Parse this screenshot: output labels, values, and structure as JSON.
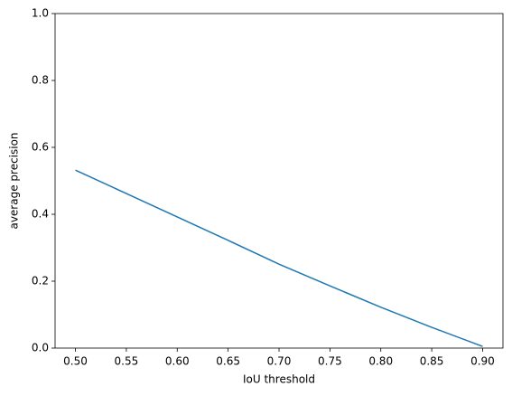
{
  "chart_data": {
    "type": "line",
    "x_label": "IoU threshold",
    "y_label": "average precision",
    "x": [
      0.5,
      0.55,
      0.6,
      0.65,
      0.7,
      0.75,
      0.8,
      0.85,
      0.9
    ],
    "series": [
      {
        "color": "#1f77b4",
        "values": [
          0.532,
          0.462,
          0.392,
          0.322,
          0.251,
          0.186,
          0.122,
          0.062,
          0.005
        ]
      }
    ],
    "xlim": [
      0.48,
      0.92
    ],
    "xticks": [
      {
        "value": 0.5,
        "label": "0.50"
      },
      {
        "value": 0.55,
        "label": "0.55"
      },
      {
        "value": 0.6,
        "label": "0.60"
      },
      {
        "value": 0.65,
        "label": "0.65"
      },
      {
        "value": 0.7,
        "label": "0.70"
      },
      {
        "value": 0.75,
        "label": "0.75"
      },
      {
        "value": 0.8,
        "label": "0.80"
      },
      {
        "value": 0.85,
        "label": "0.85"
      },
      {
        "value": 0.9,
        "label": "0.90"
      }
    ],
    "ylim": [
      0,
      1
    ],
    "yticks": [
      {
        "value": 0,
        "label": "0.0"
      },
      0.2,
      0.4,
      0.6,
      0.8,
      {
        "value": 1,
        "label": "1.0"
      }
    ]
  }
}
